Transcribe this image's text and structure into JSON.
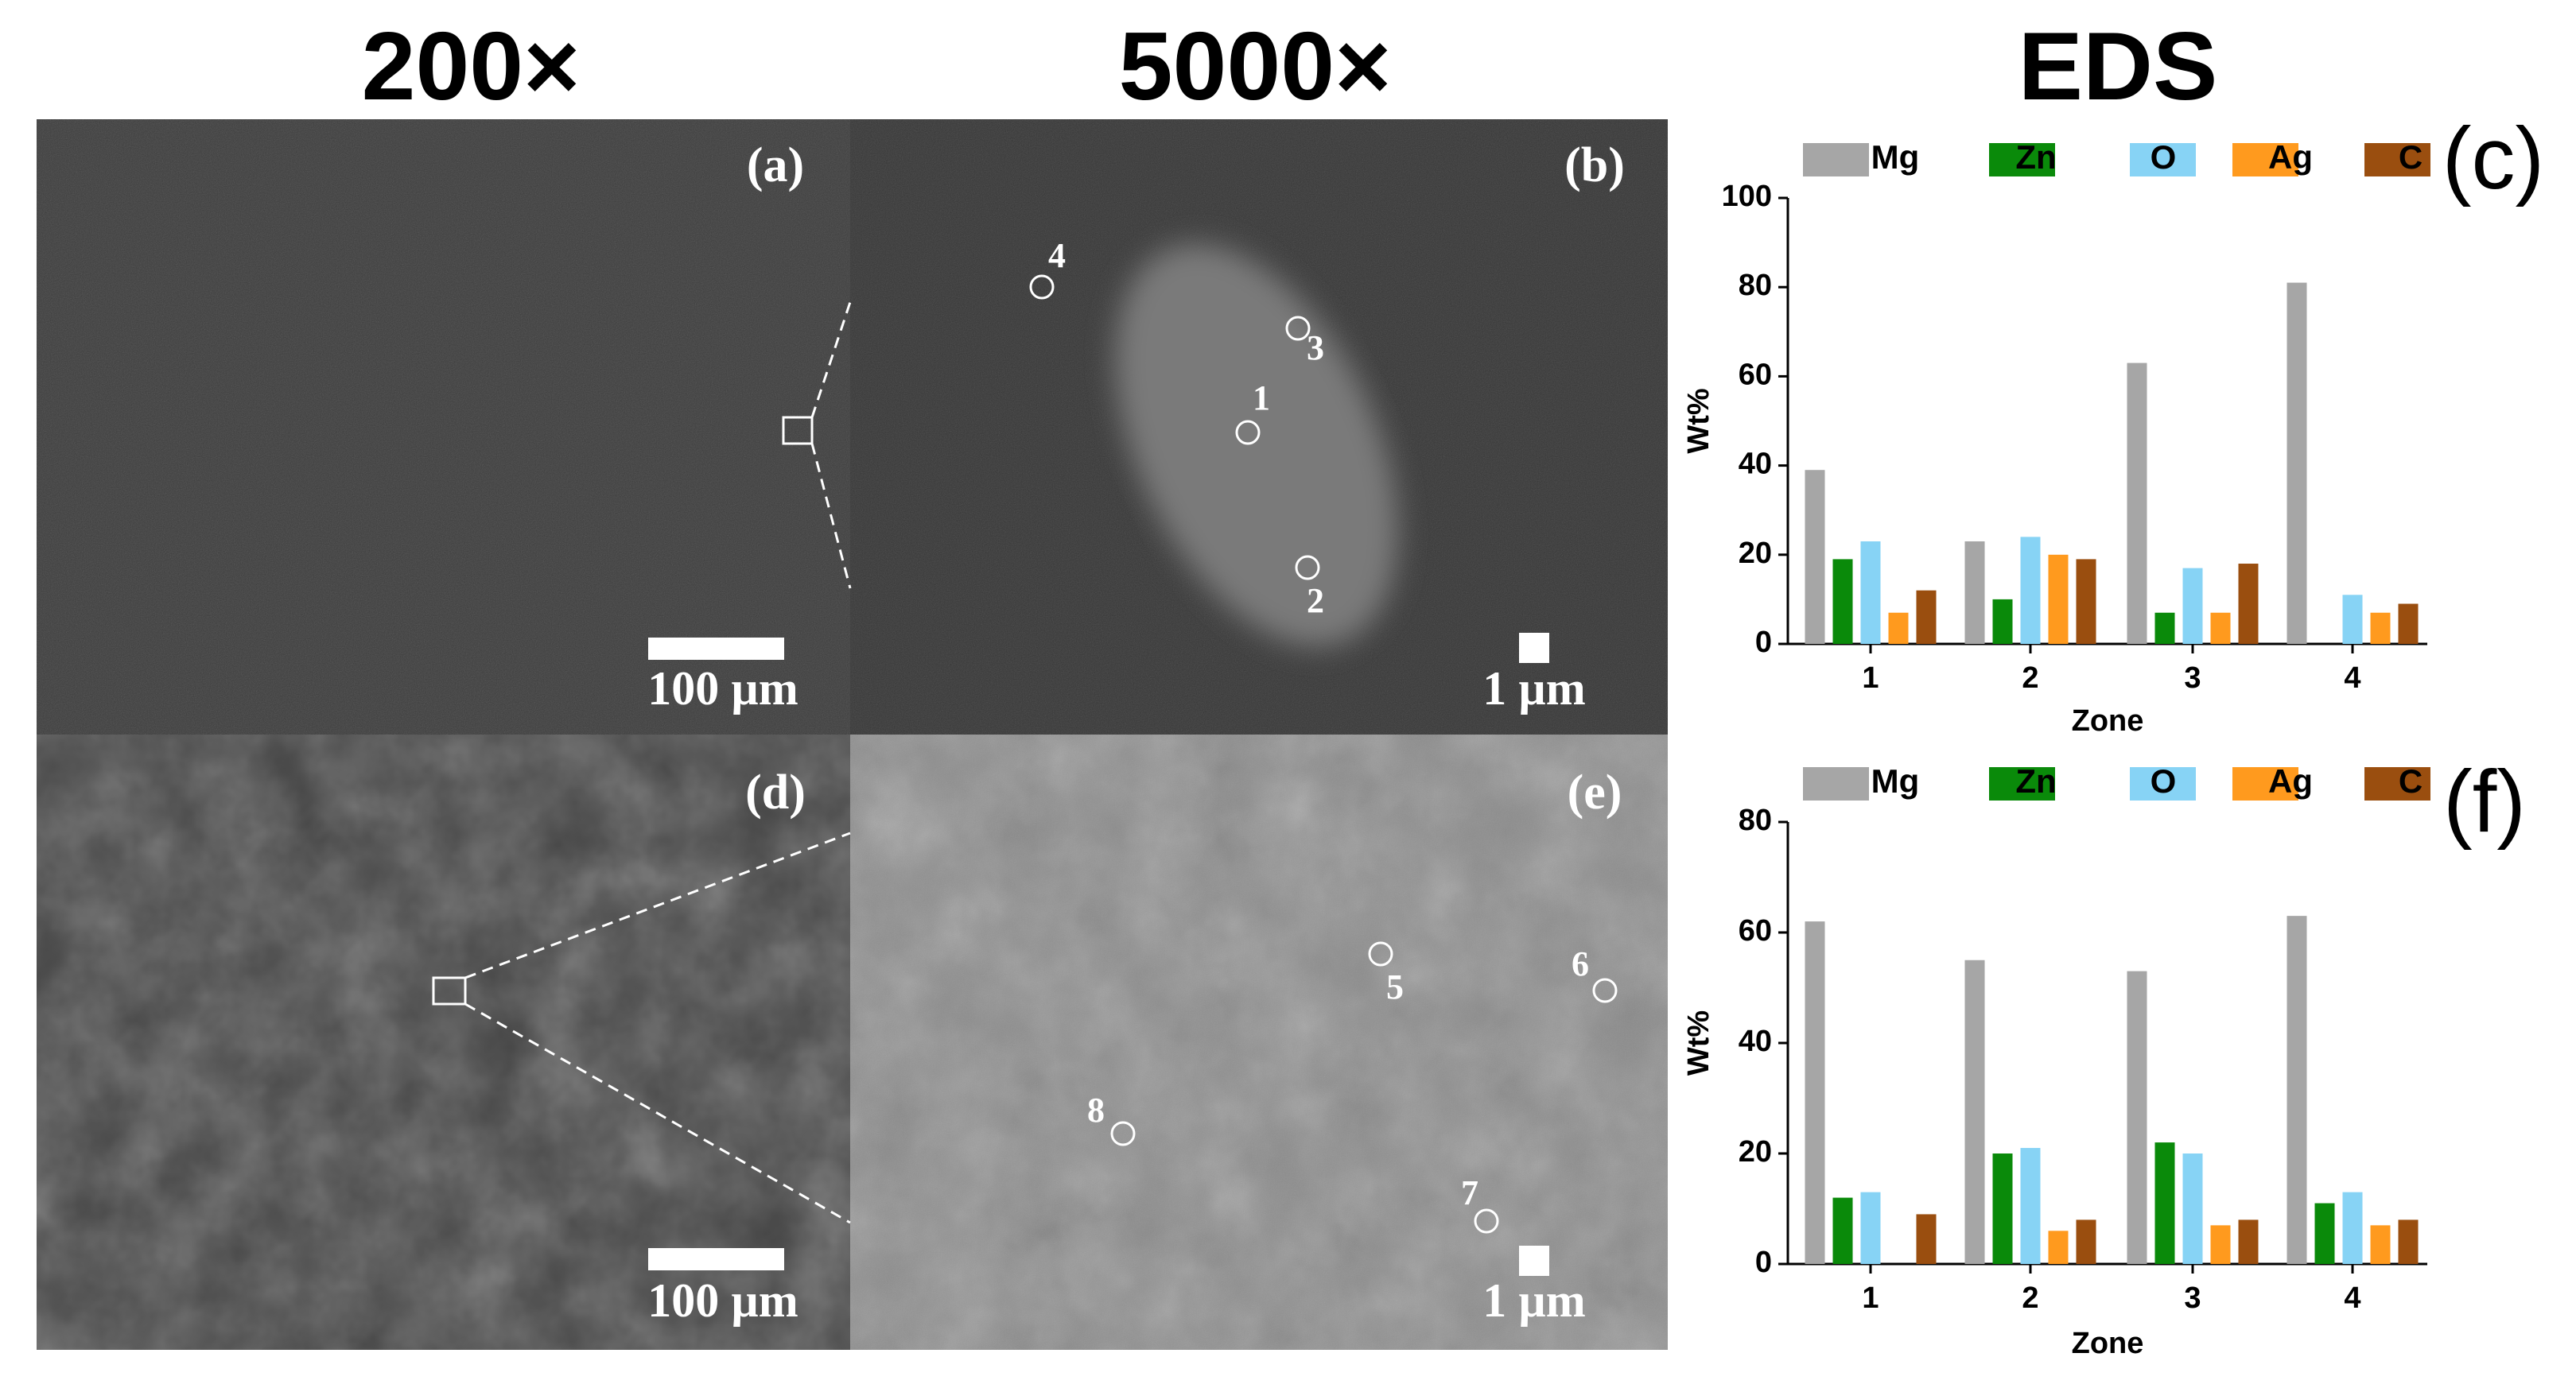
{
  "figure": {
    "headers": [
      "200×",
      "5000×",
      "EDS"
    ],
    "panel_labels": [
      "(a)",
      "(b)",
      "(d)",
      "(e)"
    ],
    "scale_bars": [
      "100 µm",
      "1 µm",
      "100 µm",
      "1 µm"
    ],
    "points": [
      "1",
      "2",
      "3",
      "4",
      "5",
      "6",
      "7",
      "8"
    ]
  },
  "chart_data": [
    {
      "type": "bar",
      "panel_label": "(c)",
      "x_label": "Zone",
      "y_label": "Wt%",
      "categories": [
        "1",
        "2",
        "3",
        "4"
      ],
      "legend": "top",
      "grid": false,
      "ylim": [
        0,
        100
      ],
      "yticks": [
        0,
        20,
        40,
        60,
        80,
        100
      ],
      "series": [
        {
          "name": "Mg",
          "color": "#a6a6a6",
          "values": [
            39,
            23,
            63,
            81
          ]
        },
        {
          "name": "Zn",
          "color": "#0a8a0a",
          "values": [
            19,
            10,
            7,
            0
          ]
        },
        {
          "name": "O",
          "color": "#87d3f5",
          "values": [
            23,
            24,
            17,
            11
          ]
        },
        {
          "name": "Ag",
          "color": "#ff9a1e",
          "values": [
            7,
            20,
            7,
            7
          ]
        },
        {
          "name": "C",
          "color": "#9a4e0f",
          "values": [
            12,
            19,
            18,
            9
          ]
        }
      ]
    },
    {
      "type": "bar",
      "panel_label": "(f)",
      "x_label": "Zone",
      "y_label": "Wt%",
      "categories": [
        "1",
        "2",
        "3",
        "4"
      ],
      "legend": "top",
      "grid": false,
      "ylim": [
        0,
        80
      ],
      "yticks": [
        0,
        20,
        40,
        60,
        80
      ],
      "series": [
        {
          "name": "Mg",
          "color": "#a6a6a6",
          "values": [
            62,
            55,
            53,
            63
          ]
        },
        {
          "name": "Zn",
          "color": "#0a8a0a",
          "values": [
            12,
            20,
            22,
            11
          ]
        },
        {
          "name": "O",
          "color": "#87d3f5",
          "values": [
            13,
            21,
            20,
            13
          ]
        },
        {
          "name": "Ag",
          "color": "#ff9a1e",
          "values": [
            0,
            6,
            7,
            7
          ]
        },
        {
          "name": "C",
          "color": "#9a4e0f",
          "values": [
            9,
            8,
            8,
            8
          ]
        }
      ]
    }
  ]
}
